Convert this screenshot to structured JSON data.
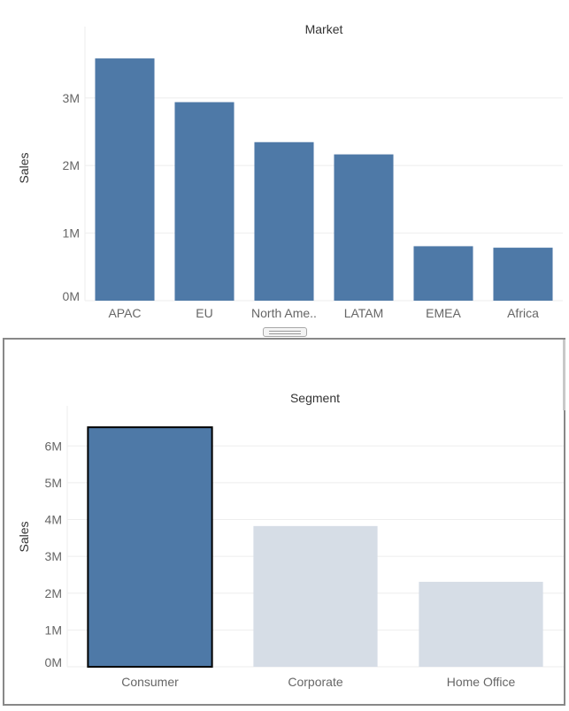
{
  "colors": {
    "bar_primary": "#4e79a7",
    "bar_muted": "#d6dde6",
    "gridline": "#eeeeee",
    "axis_text": "#666666",
    "title_text": "#333333",
    "panel_border": "#888888",
    "selection_outline": "#000000"
  },
  "chart_data": [
    {
      "type": "bar",
      "title": "Market",
      "xlabel": "",
      "ylabel": "Sales",
      "categories": [
        "APAC",
        "EU",
        "North Ame..",
        "LATAM",
        "EMEA",
        "Africa"
      ],
      "values": [
        3585000,
        2938000,
        2346000,
        2165000,
        806000,
        784000
      ],
      "ylim": [
        0,
        3900000
      ],
      "yticks": [
        {
          "value": 0,
          "label": "0M"
        },
        {
          "value": 1000000,
          "label": "1M"
        },
        {
          "value": 2000000,
          "label": "2M"
        },
        {
          "value": 3000000,
          "label": "3M"
        }
      ],
      "grid": true,
      "legend": "none"
    },
    {
      "type": "bar",
      "title": "Segment",
      "xlabel": "",
      "ylabel": "Sales",
      "categories": [
        "Consumer",
        "Corporate",
        "Home Office"
      ],
      "values": [
        6508000,
        3824000,
        2309000
      ],
      "highlighted": [
        "Consumer"
      ],
      "ylim": [
        0,
        6800000
      ],
      "yticks": [
        {
          "value": 0,
          "label": "0M"
        },
        {
          "value": 1000000,
          "label": "1M"
        },
        {
          "value": 2000000,
          "label": "2M"
        },
        {
          "value": 3000000,
          "label": "3M"
        },
        {
          "value": 4000000,
          "label": "4M"
        },
        {
          "value": 5000000,
          "label": "5M"
        },
        {
          "value": 6000000,
          "label": "6M"
        }
      ],
      "grid": true,
      "legend": "none"
    }
  ]
}
